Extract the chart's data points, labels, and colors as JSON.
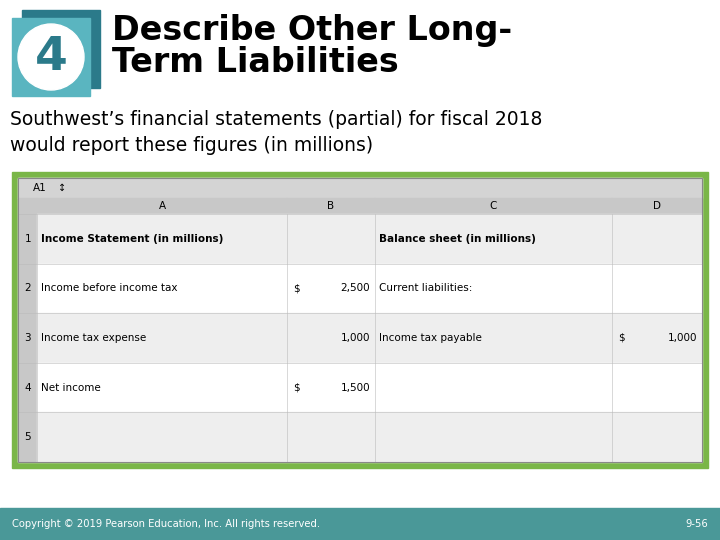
{
  "title_line1": "Describe Other Long-",
  "title_line2": "Term Liabilities",
  "number": "4",
  "subtitle_line1": "Southwest’s financial statements (partial) for fiscal 2018",
  "subtitle_line2": "would report these figures (in millions)",
  "footer_left": "Copyright © 2019 Pearson Education, Inc. All rights reserved.",
  "footer_right": "9-56",
  "footer_bg": "#4a9898",
  "teal_dark": "#2b7a8a",
  "teal_light": "#5ab5c0",
  "green_border": "#7ab648",
  "addr_bar_bg": "#d4d4d4",
  "col_header_bg": "#c8c8c8",
  "row_odd_bg": "#eeeeee",
  "row_even_bg": "#ffffff",
  "grid_color": "#bbbbbb",
  "row_data": [
    {
      "row": "1",
      "A": "Income Statement (in millions)",
      "B_dollar": "",
      "B_val": "",
      "C": "Balance sheet (in millions)",
      "D_dollar": "",
      "D_val": "",
      "bold_A": true,
      "bold_C": true
    },
    {
      "row": "2",
      "A": "Income before income tax",
      "B_dollar": "$",
      "B_val": "2,500",
      "C": "Current liabilities:",
      "D_dollar": "",
      "D_val": "",
      "bold_A": false,
      "bold_C": false
    },
    {
      "row": "3",
      "A": "Income tax expense",
      "B_dollar": "",
      "B_val": "1,000",
      "C": "Income tax payable",
      "D_dollar": "$",
      "D_val": "1,000",
      "bold_A": false,
      "bold_C": false
    },
    {
      "row": "4",
      "A": "Net income",
      "B_dollar": "$",
      "B_val": "1,500",
      "C": "",
      "D_dollar": "",
      "D_val": "",
      "bold_A": false,
      "bold_C": false
    },
    {
      "row": "5",
      "A": "",
      "B_dollar": "",
      "B_val": "",
      "C": "",
      "D_dollar": "",
      "D_val": "",
      "bold_A": false,
      "bold_C": false
    }
  ]
}
